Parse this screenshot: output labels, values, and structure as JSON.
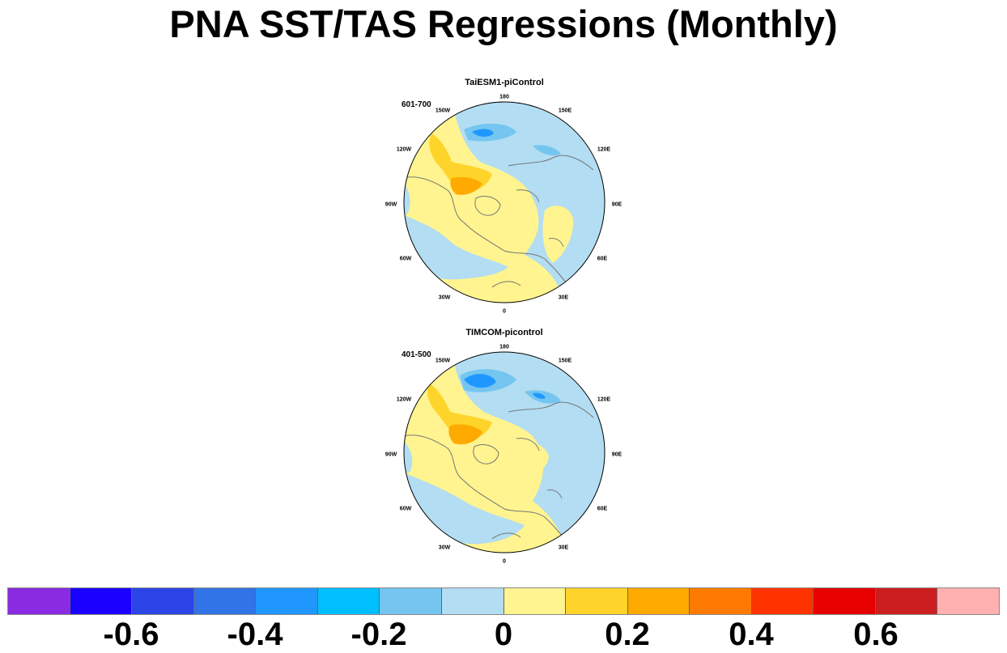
{
  "title": "PNA SST/TAS Regressions (Monthly)",
  "panels": [
    {
      "title": "TaiESM1-piControl",
      "period": "601-700"
    },
    {
      "title": "TIMCOM-picontrol",
      "period": "401-500"
    }
  ],
  "lon_labels": [
    "180",
    "150E",
    "120E",
    "90E",
    "60E",
    "30E",
    "0",
    "30W",
    "60W",
    "90W",
    "120W",
    "150W"
  ],
  "colorbar": {
    "colors": [
      "#8a2be2",
      "#1a00ff",
      "#2b45e6",
      "#3174e8",
      "#1f97ff",
      "#00bfff",
      "#74c6f0",
      "#b3ddf2",
      "#fff48f",
      "#ffd42a",
      "#ffaa00",
      "#ff7a00",
      "#ff3300",
      "#e60000",
      "#cc1e1e",
      "#ffb0b0"
    ],
    "tick_labels": [
      "-0.6",
      "-0.4",
      "-0.2",
      "0",
      "0.2",
      "0.4",
      "0.6"
    ]
  }
}
